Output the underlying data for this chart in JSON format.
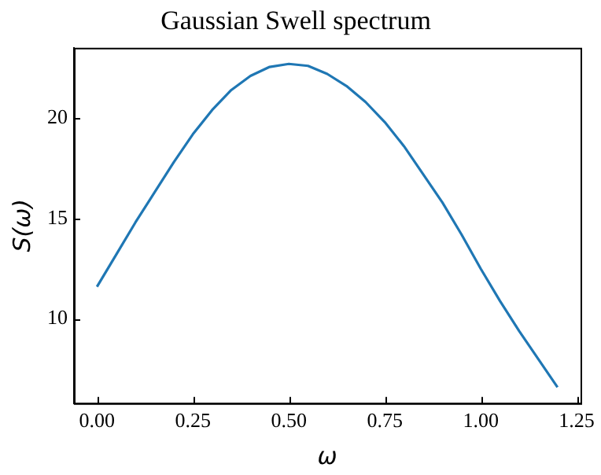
{
  "chart_data": {
    "type": "line",
    "title": "Gaussian Swell spectrum",
    "xlabel": "ω",
    "ylabel": "S(ω)",
    "x": [
      0,
      0.05,
      0.1,
      0.15,
      0.2,
      0.25,
      0.3,
      0.35,
      0.4,
      0.45,
      0.5,
      0.55,
      0.6,
      0.65,
      0.7,
      0.75,
      0.8,
      0.85,
      0.9,
      0.95,
      1.0,
      1.05,
      1.1,
      1.15,
      1.2
    ],
    "series": [
      {
        "color": "#1f77b4",
        "values": [
          11.6,
          13.2,
          14.8,
          16.3,
          17.8,
          19.2,
          20.4,
          21.4,
          22.1,
          22.55,
          22.7,
          22.6,
          22.2,
          21.6,
          20.8,
          19.8,
          18.6,
          17.2,
          15.8,
          14.2,
          12.5,
          10.9,
          9.4,
          8.0,
          6.6
        ]
      }
    ],
    "xlim": [
      -0.06,
      1.26
    ],
    "ylim": [
      5.8,
      23.5
    ],
    "xticks": [
      {
        "value": 0,
        "label": "0.00"
      },
      {
        "value": 0.25,
        "label": "0.25"
      },
      {
        "value": 0.5,
        "label": "0.50"
      },
      {
        "value": 0.75,
        "label": "0.75"
      },
      {
        "value": 1,
        "label": "1.00"
      },
      {
        "value": 1.25,
        "label": "1.25"
      }
    ],
    "yticks": [
      10,
      15,
      20
    ],
    "grid": false,
    "legend": false,
    "marker": "none",
    "line_style": "solid"
  }
}
